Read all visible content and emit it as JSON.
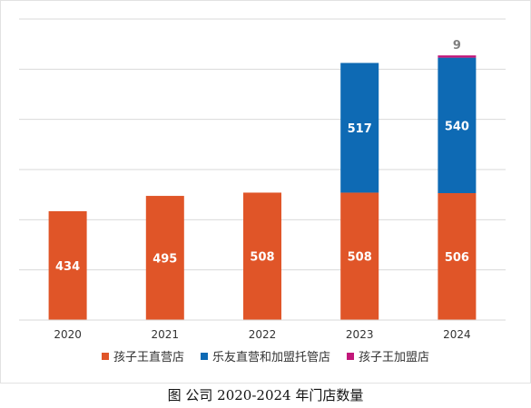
{
  "chart_data": {
    "type": "bar",
    "stacked": true,
    "categories": [
      "2020",
      "2021",
      "2022",
      "2023",
      "2024"
    ],
    "series": [
      {
        "name": "孩子王直营店",
        "values": [
          434,
          495,
          508,
          508,
          506
        ],
        "color": "#e05528"
      },
      {
        "name": "乐友直营和加盟托管店",
        "values": [
          0,
          0,
          0,
          517,
          540
        ],
        "color": "#0e6ab4"
      },
      {
        "name": "孩子王加盟店",
        "values": [
          0,
          0,
          0,
          0,
          9
        ],
        "color": "#c2177a"
      }
    ],
    "data_labels": [
      [
        "434",
        "495",
        "508",
        "508",
        "506"
      ],
      [
        "",
        "",
        "",
        "517",
        "540"
      ],
      [
        "",
        "",
        "",
        "",
        "9"
      ]
    ],
    "ylim": [
      0,
      1200
    ],
    "grid": true,
    "legend_position": "bottom",
    "caption": "图 公司 2020-2024 年门店数量"
  }
}
